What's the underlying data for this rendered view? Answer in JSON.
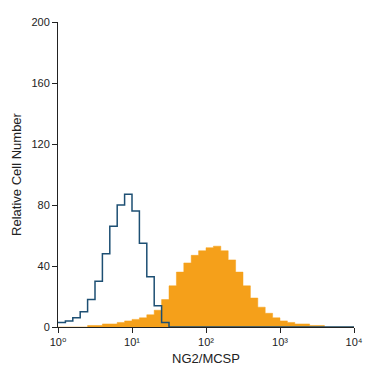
{
  "chart_data": {
    "type": "histogram",
    "x_label": "NG2/MCSP",
    "y_label": "Relative Cell Number",
    "log": "x",
    "grid": false,
    "xlim": [
      1,
      10000
    ],
    "xticks": [
      {
        "value": 1,
        "label": "10⁰"
      },
      {
        "value": 10,
        "label": "10¹"
      },
      {
        "value": 100,
        "label": "10²"
      },
      {
        "value": 1000,
        "label": "10³"
      },
      {
        "value": 10000,
        "label": "10⁴"
      }
    ],
    "ylim": [
      0,
      200
    ],
    "yticks": [
      0,
      40,
      80,
      120,
      160,
      200
    ],
    "bins": [
      1,
      1.259,
      1.585,
      1.995,
      2.512,
      3.162,
      3.981,
      5.012,
      6.31,
      7.943,
      10,
      12.59,
      15.85,
      19.95,
      25.12,
      31.62,
      39.81,
      50.12,
      63.1,
      79.43,
      100,
      125.9,
      158.5,
      199.5,
      251.2,
      316.2,
      398.1,
      501.2,
      631,
      794.3,
      1000,
      1259,
      1585,
      1995,
      2512,
      3162,
      3981,
      5012,
      6310,
      7943,
      10000
    ],
    "series": [
      {
        "type": "area",
        "color": "#f5a01a",
        "values": [
          0,
          0,
          0,
          0,
          1,
          1,
          2,
          2,
          3,
          4,
          5,
          6,
          8,
          11,
          18,
          27,
          36,
          42,
          47,
          50,
          52,
          53,
          50,
          44,
          36,
          27,
          19,
          13,
          9,
          6,
          4,
          3,
          2,
          2,
          1,
          1,
          0,
          0,
          0,
          0
        ]
      },
      {
        "type": "line",
        "color": "#1d4f73",
        "values": [
          3,
          4,
          6,
          10,
          18,
          30,
          48,
          66,
          80,
          87,
          76,
          55,
          33,
          14,
          3,
          0,
          0,
          0,
          0,
          0,
          0,
          0,
          0,
          0,
          0,
          0,
          0,
          0,
          0,
          0,
          0,
          0,
          0,
          0,
          0,
          0,
          0,
          0,
          0,
          0
        ]
      }
    ]
  }
}
